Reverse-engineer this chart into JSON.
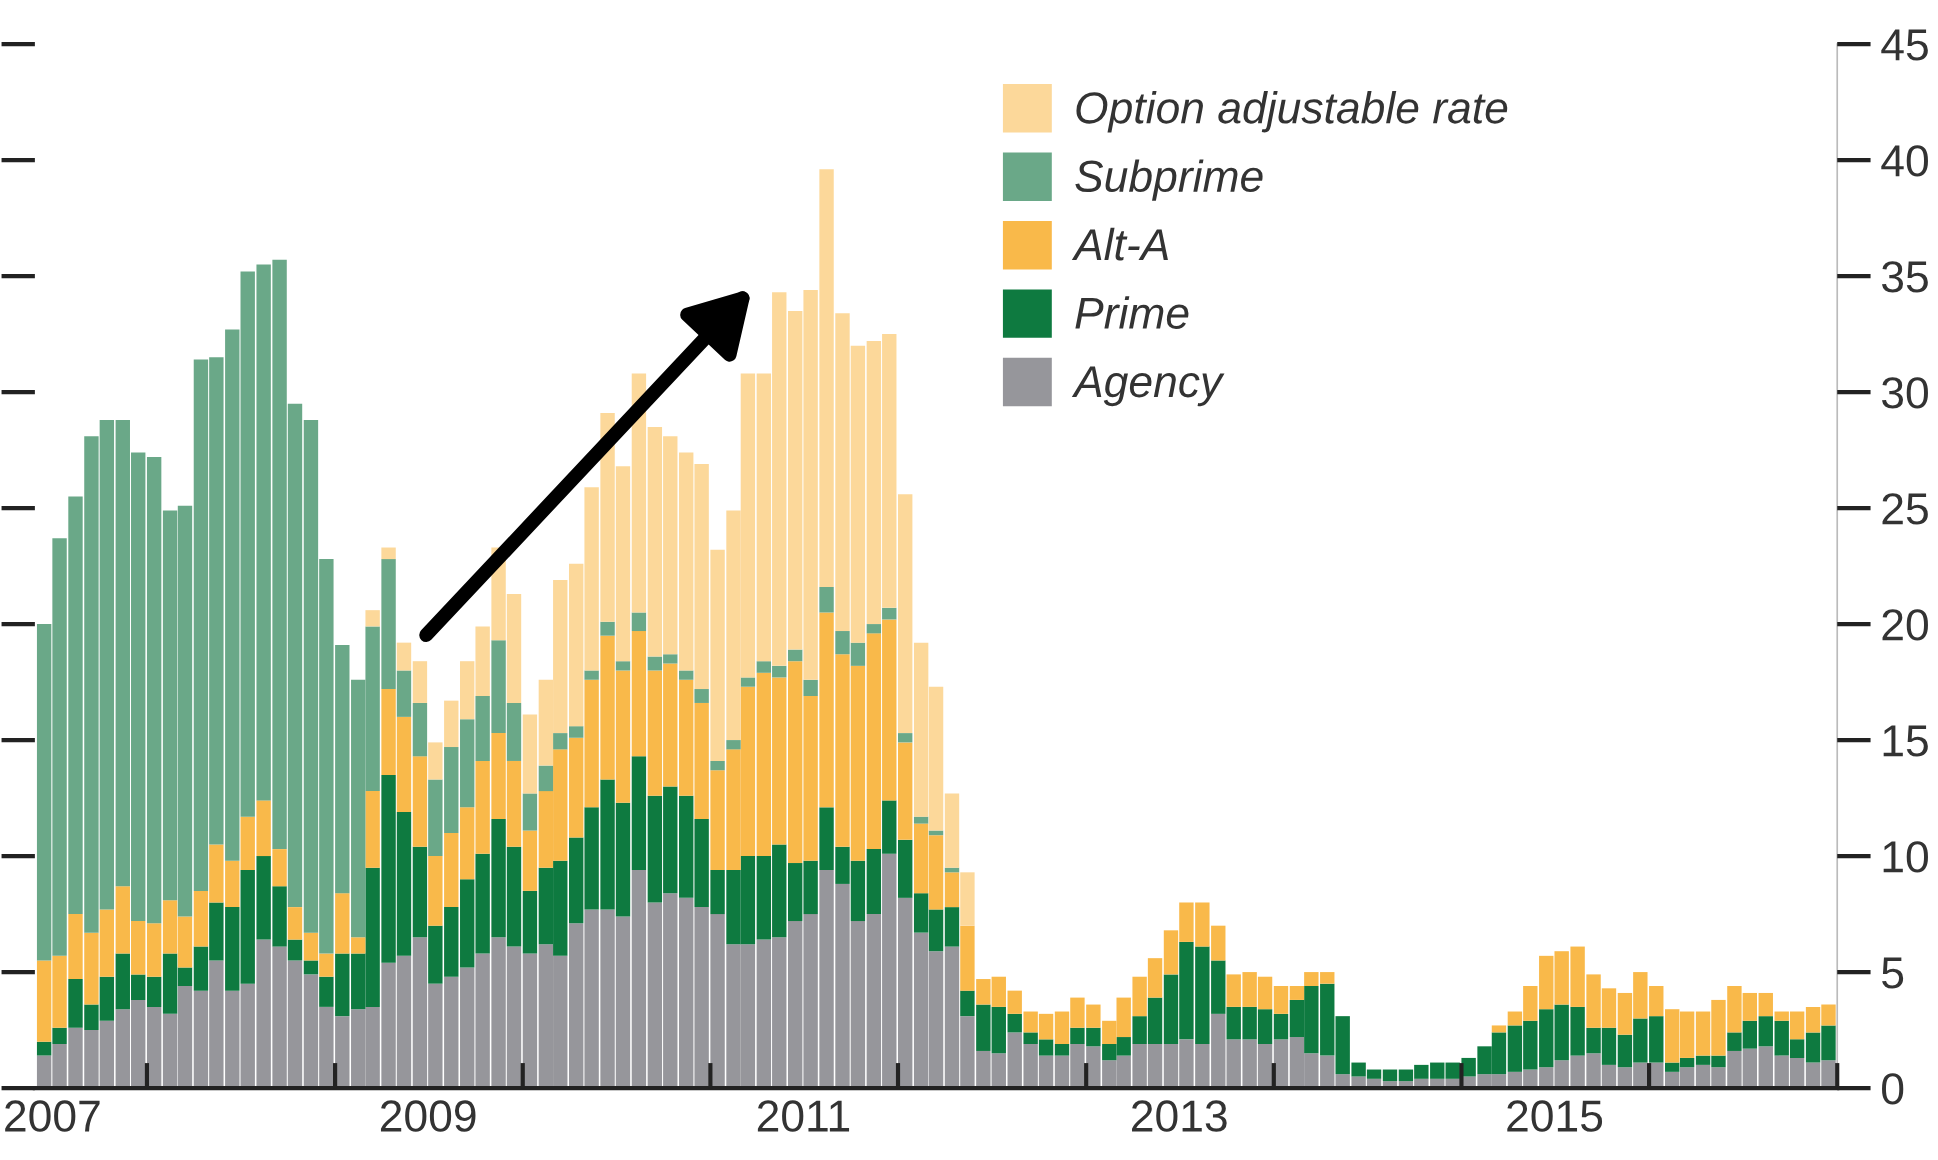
{
  "chart_data": {
    "type": "bar",
    "stacked": true,
    "x": [
      "2007-06",
      "2007-07",
      "2007-08",
      "2007-09",
      "2007-10",
      "2007-11",
      "2007-12",
      "2008-01",
      "2008-02",
      "2008-03",
      "2008-04",
      "2008-05",
      "2008-06",
      "2008-07",
      "2008-08",
      "2008-09",
      "2008-10",
      "2008-11",
      "2008-12",
      "2009-01",
      "2009-02",
      "2009-03",
      "2009-04",
      "2009-05",
      "2009-06",
      "2009-07",
      "2009-08",
      "2009-09",
      "2009-10",
      "2009-11",
      "2009-12",
      "2010-01",
      "2010-02",
      "2010-03",
      "2010-04",
      "2010-05",
      "2010-06",
      "2010-07",
      "2010-08",
      "2010-09",
      "2010-10",
      "2010-11",
      "2010-12",
      "2011-01",
      "2011-02",
      "2011-03",
      "2011-04",
      "2011-05",
      "2011-06",
      "2011-07",
      "2011-08",
      "2011-09",
      "2011-10",
      "2011-11",
      "2011-12",
      "2012-01",
      "2012-02",
      "2012-03",
      "2012-04",
      "2012-05",
      "2012-06",
      "2012-07",
      "2012-08",
      "2012-09",
      "2012-10",
      "2012-11",
      "2012-12",
      "2013-01",
      "2013-02",
      "2013-03",
      "2013-04",
      "2013-05",
      "2013-06",
      "2013-07",
      "2013-08",
      "2013-09",
      "2013-10",
      "2013-11",
      "2013-12",
      "2014-01",
      "2014-02",
      "2014-03",
      "2014-04",
      "2014-05",
      "2014-06",
      "2014-07",
      "2014-08",
      "2014-09",
      "2014-10",
      "2014-11",
      "2014-12",
      "2015-01",
      "2015-02",
      "2015-03",
      "2015-04",
      "2015-05",
      "2015-06",
      "2015-07",
      "2015-08",
      "2015-09",
      "2015-10",
      "2015-11",
      "2015-12",
      "2016-01",
      "2016-02",
      "2016-03",
      "2016-04",
      "2016-05",
      "2016-06",
      "2016-07",
      "2016-08",
      "2016-09",
      "2016-10",
      "2016-11",
      "2016-12"
    ],
    "series": [
      {
        "name": "Agency",
        "color": "#96969b",
        "values": [
          1.4,
          1.9,
          2.6,
          2.5,
          2.9,
          3.4,
          3.8,
          3.5,
          3.2,
          4.4,
          4.2,
          5.5,
          4.2,
          4.5,
          6.4,
          6.1,
          5.5,
          4.9,
          3.5,
          3.1,
          3.4,
          3.5,
          5.4,
          5.7,
          6.5,
          4.5,
          4.8,
          5.2,
          5.8,
          6.5,
          6.1,
          5.8,
          6.2,
          5.7,
          7.1,
          7.7,
          7.7,
          7.4,
          9.4,
          8.0,
          8.4,
          8.2,
          7.8,
          7.5,
          6.2,
          6.2,
          6.4,
          6.5,
          7.2,
          7.5,
          9.4,
          8.8,
          7.2,
          7.5,
          10.1,
          8.2,
          6.7,
          5.9,
          6.1,
          3.1,
          1.6,
          1.5,
          2.4,
          1.9,
          1.4,
          1.4,
          1.9,
          1.8,
          1.2,
          1.4,
          1.9,
          1.9,
          1.9,
          2.1,
          1.9,
          3.2,
          2.1,
          2.1,
          1.9,
          2.1,
          2.2,
          1.5,
          1.4,
          0.6,
          0.5,
          0.4,
          0.3,
          0.3,
          0.4,
          0.4,
          0.4,
          0.5,
          0.6,
          0.6,
          0.7,
          0.8,
          0.9,
          1.2,
          1.4,
          1.5,
          1.0,
          0.9,
          1.1,
          1.1,
          0.7,
          0.9,
          1.0,
          0.9,
          1.6,
          1.7,
          1.8,
          1.4,
          1.3,
          1.1,
          1.2
        ]
      },
      {
        "name": "Prime",
        "color": "#0e7a40",
        "values": [
          0.6,
          0.7,
          2.1,
          1.1,
          1.9,
          2.4,
          1.1,
          1.3,
          2.6,
          0.8,
          1.9,
          2.5,
          3.6,
          4.9,
          3.6,
          2.6,
          0.9,
          0.6,
          1.3,
          2.7,
          2.4,
          6.0,
          8.1,
          6.2,
          3.9,
          2.5,
          3.0,
          3.8,
          4.3,
          5.1,
          4.3,
          2.7,
          3.3,
          4.1,
          3.7,
          4.4,
          5.6,
          4.9,
          4.9,
          4.6,
          4.6,
          4.4,
          3.8,
          1.9,
          3.2,
          3.8,
          3.6,
          4.0,
          2.5,
          2.3,
          2.7,
          1.6,
          2.6,
          2.8,
          2.3,
          2.5,
          1.7,
          1.8,
          1.7,
          1.1,
          2.0,
          2.0,
          0.8,
          0.5,
          0.7,
          0.5,
          0.7,
          0.8,
          0.7,
          0.8,
          1.2,
          2.0,
          3.0,
          4.2,
          4.2,
          2.3,
          1.4,
          1.4,
          1.5,
          1.1,
          1.6,
          2.9,
          3.1,
          2.5,
          0.6,
          0.4,
          0.5,
          0.5,
          0.6,
          0.7,
          0.7,
          0.8,
          1.2,
          1.8,
          2.0,
          2.1,
          2.5,
          2.4,
          2.1,
          1.1,
          1.6,
          1.4,
          1.9,
          2.0,
          0.4,
          0.4,
          0.4,
          0.5,
          0.8,
          1.2,
          1.3,
          1.5,
          0.8,
          1.3,
          1.5
        ]
      },
      {
        "name": "Alt-A",
        "color": "#f9b94a",
        "values": [
          3.5,
          3.1,
          2.8,
          3.1,
          2.9,
          2.9,
          2.3,
          2.3,
          2.3,
          2.2,
          2.4,
          2.5,
          2.0,
          2.3,
          2.4,
          1.6,
          1.4,
          1.2,
          1.0,
          2.6,
          0.7,
          3.3,
          3.7,
          4.1,
          3.9,
          3.0,
          3.2,
          3.1,
          4.0,
          3.7,
          3.7,
          2.6,
          3.3,
          4.8,
          4.3,
          5.5,
          6.2,
          5.7,
          5.4,
          5.4,
          5.3,
          5.0,
          5.0,
          4.3,
          5.2,
          7.3,
          7.9,
          7.2,
          8.7,
          7.1,
          8.4,
          8.3,
          8.4,
          9.3,
          7.8,
          4.2,
          3.0,
          3.2,
          1.5,
          2.8,
          1.1,
          1.3,
          1.0,
          0.9,
          1.1,
          1.4,
          1.3,
          1.0,
          1.0,
          1.7,
          1.7,
          1.7,
          1.9,
          1.7,
          1.9,
          1.5,
          1.4,
          1.5,
          1.4,
          1.2,
          0.6,
          0.6,
          0.5,
          0,
          0,
          0,
          0,
          0,
          0,
          0,
          0,
          0,
          0,
          0.3,
          0.6,
          1.5,
          2.3,
          2.3,
          2.6,
          2.3,
          1.7,
          1.8,
          2.0,
          1.3,
          2.3,
          2.0,
          1.9,
          2.4,
          2.0,
          1.2,
          1.0,
          0.4,
          1.2,
          1.1,
          0.9
        ]
      },
      {
        "name": "Subprime",
        "color": "#6aa888",
        "values": [
          14.5,
          18.0,
          18.0,
          21.4,
          21.1,
          20.1,
          20.2,
          20.1,
          16.8,
          17.7,
          22.9,
          21.0,
          22.9,
          23.5,
          23.1,
          25.4,
          21.7,
          22.1,
          17.0,
          10.7,
          11.1,
          7.1,
          5.6,
          2.0,
          2.3,
          3.3,
          3.7,
          3.8,
          2.8,
          4.0,
          2.5,
          1.6,
          1.1,
          0.7,
          0.5,
          0.4,
          0.6,
          0.4,
          0.8,
          0.6,
          0.4,
          0.4,
          0.6,
          0.4,
          0.4,
          0.4,
          0.5,
          0.5,
          0.5,
          0.7,
          1.1,
          1.0,
          1.0,
          0.4,
          0.5,
          0.4,
          0.3,
          0.2,
          0.2,
          0,
          0,
          0,
          0,
          0,
          0,
          0,
          0,
          0,
          0,
          0,
          0,
          0,
          0,
          0,
          0,
          0,
          0,
          0,
          0,
          0,
          0,
          0,
          0,
          0,
          0,
          0,
          0,
          0,
          0,
          0,
          0,
          0,
          0,
          0,
          0,
          0,
          0,
          0,
          0,
          0,
          0,
          0,
          0,
          0,
          0,
          0,
          0,
          0,
          0,
          0,
          0,
          0,
          0,
          0,
          0
        ]
      },
      {
        "name": "Option adjustable rate",
        "color": "#fcd89a",
        "values": [
          0,
          0,
          0,
          0,
          0,
          0,
          0,
          0,
          0,
          0,
          0,
          0,
          0,
          0,
          0,
          0,
          0,
          0,
          0,
          0,
          0,
          0.7,
          0.5,
          1.2,
          1.8,
          1.6,
          2.0,
          2.5,
          3.0,
          4.0,
          4.7,
          3.4,
          3.7,
          6.6,
          7.0,
          7.9,
          9.0,
          8.4,
          10.3,
          9.9,
          9.4,
          9.4,
          9.7,
          9.1,
          9.9,
          13.1,
          12.4,
          16.1,
          14.6,
          16.8,
          18.0,
          13.7,
          12.8,
          12.2,
          11.8,
          10.3,
          7.5,
          6.2,
          3.2,
          2.3,
          0,
          0,
          0,
          0,
          0,
          0,
          0,
          0,
          0,
          0,
          0,
          0,
          0,
          0,
          0,
          0,
          0,
          0,
          0,
          0,
          0,
          0,
          0,
          0,
          0,
          0,
          0,
          0,
          0,
          0,
          0,
          0,
          0,
          0,
          0,
          0,
          0,
          0,
          0,
          0,
          0,
          0,
          0,
          0,
          0,
          0,
          0,
          0,
          0,
          0,
          0,
          0,
          0,
          0,
          0
        ]
      }
    ],
    "xlim": [
      "2007-05-28",
      "2017-01-01"
    ],
    "xticks": [
      {
        "value": "2007-07-01",
        "label": "2007"
      },
      {
        "value": "2008-01-01",
        "label": null
      },
      {
        "value": "2009-01-01",
        "label": null
      },
      {
        "value": "2009-07-01",
        "label": "2009"
      },
      {
        "value": "2010-01-01",
        "label": null
      },
      {
        "value": "2011-01-01",
        "label": null
      },
      {
        "value": "2011-07-01",
        "label": "2011"
      },
      {
        "value": "2012-01-01",
        "label": null
      },
      {
        "value": "2013-01-01",
        "label": null
      },
      {
        "value": "2013-07-01",
        "label": "2013"
      },
      {
        "value": "2014-01-01",
        "label": null
      },
      {
        "value": "2015-01-01",
        "label": null
      },
      {
        "value": "2015-07-01",
        "label": "2015"
      },
      {
        "value": "2016-01-01",
        "label": null
      },
      {
        "value": "2017-01-01",
        "label": null
      }
    ],
    "ylim": [
      0,
      45
    ],
    "yticks": [
      0,
      5,
      10,
      15,
      20,
      25,
      30,
      35,
      40,
      45
    ],
    "legend": "top right",
    "grid": false
  }
}
